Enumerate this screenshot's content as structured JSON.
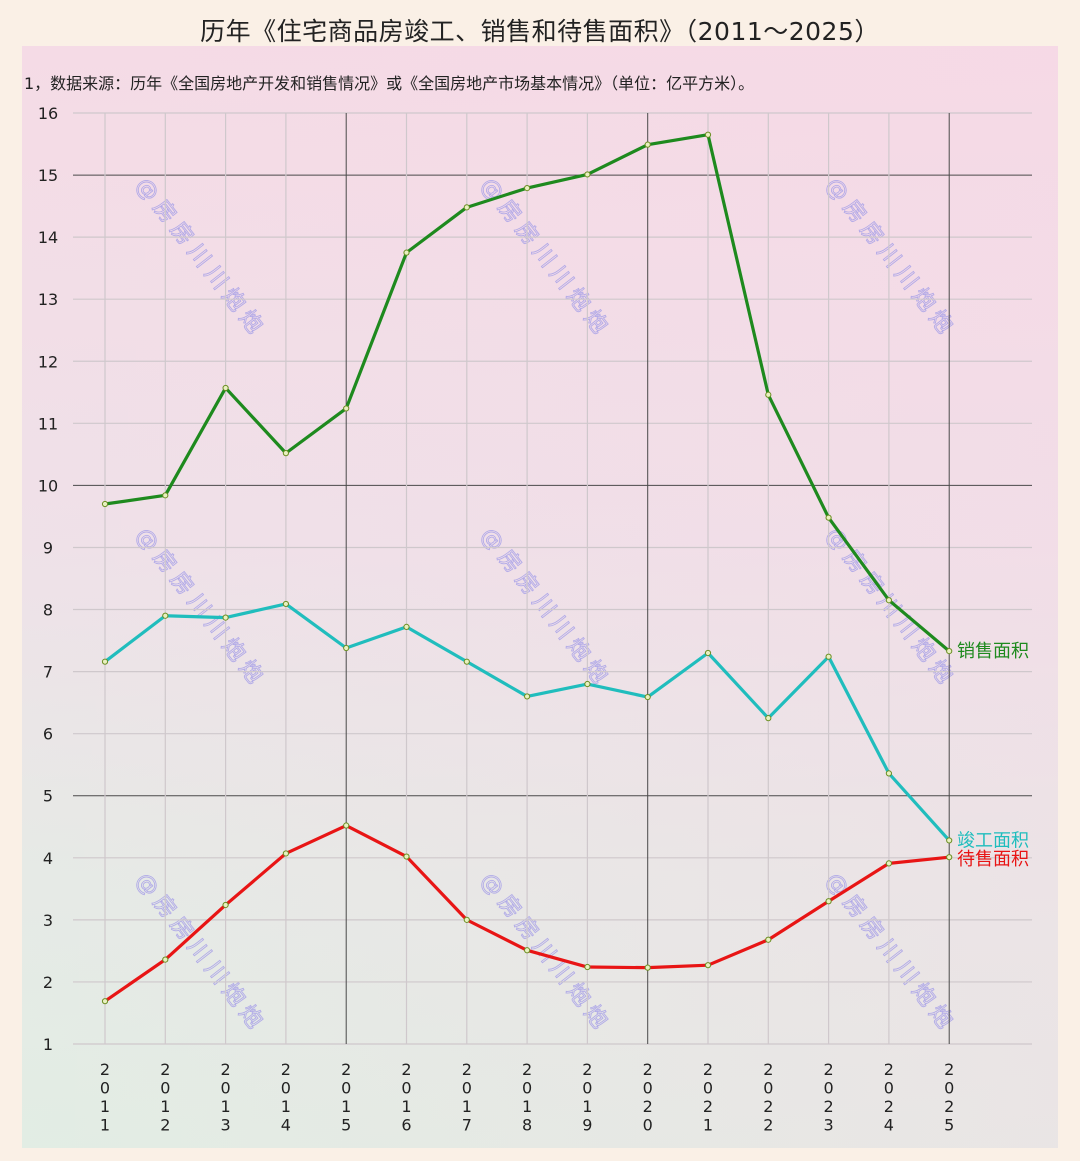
{
  "title": "历年《住宅商品房竣工、销售和待售面积》（2011～2025）",
  "note": "1，数据来源：历年《全国房地产开发和销售情况》或《全国房地产市场基本情况》（单位：亿平方米）。",
  "watermark": "@房房川川炮炮",
  "colors": {
    "background": "#FAF0E6",
    "sales": "#1E8A1E",
    "completion": "#20BDBD",
    "inventory": "#E81515",
    "grid_major": "#4A4A4A",
    "grid_minor": "#CFC8CC",
    "marker_fill": "#E8F0C0"
  },
  "chart_data": {
    "type": "line",
    "title": "历年《住宅商品房竣工、销售和待售面积》（2011～2025）",
    "xlabel": "",
    "ylabel": "亿平方米",
    "ylim": [
      1,
      16
    ],
    "yticks": [
      1,
      2,
      3,
      4,
      5,
      6,
      7,
      8,
      9,
      10,
      11,
      12,
      13,
      14,
      15,
      16
    ],
    "grid": true,
    "legend_position": "inline-right",
    "categories": [
      "2011",
      "2012",
      "2013",
      "2014",
      "2015",
      "2016",
      "2017",
      "2018",
      "2019",
      "2020",
      "2021",
      "2022",
      "2023",
      "2024",
      "2025"
    ],
    "series": [
      {
        "name": "销售面积",
        "color": "#1E8A1E",
        "values": [
          9.7,
          9.84,
          11.57,
          10.52,
          11.24,
          13.75,
          14.48,
          14.79,
          15.01,
          15.49,
          15.65,
          11.46,
          9.48,
          8.15,
          7.33
        ]
      },
      {
        "name": "竣工面积",
        "color": "#20BDBD",
        "values": [
          7.16,
          7.9,
          7.87,
          8.09,
          7.38,
          7.72,
          7.16,
          6.6,
          6.8,
          6.59,
          7.3,
          6.25,
          7.24,
          5.36,
          4.28
        ]
      },
      {
        "name": "待售面积",
        "color": "#E81515",
        "values": [
          1.69,
          2.36,
          3.24,
          4.07,
          4.52,
          4.02,
          3.0,
          2.51,
          2.24,
          2.23,
          2.27,
          2.68,
          3.3,
          3.91,
          4.01
        ]
      }
    ]
  }
}
